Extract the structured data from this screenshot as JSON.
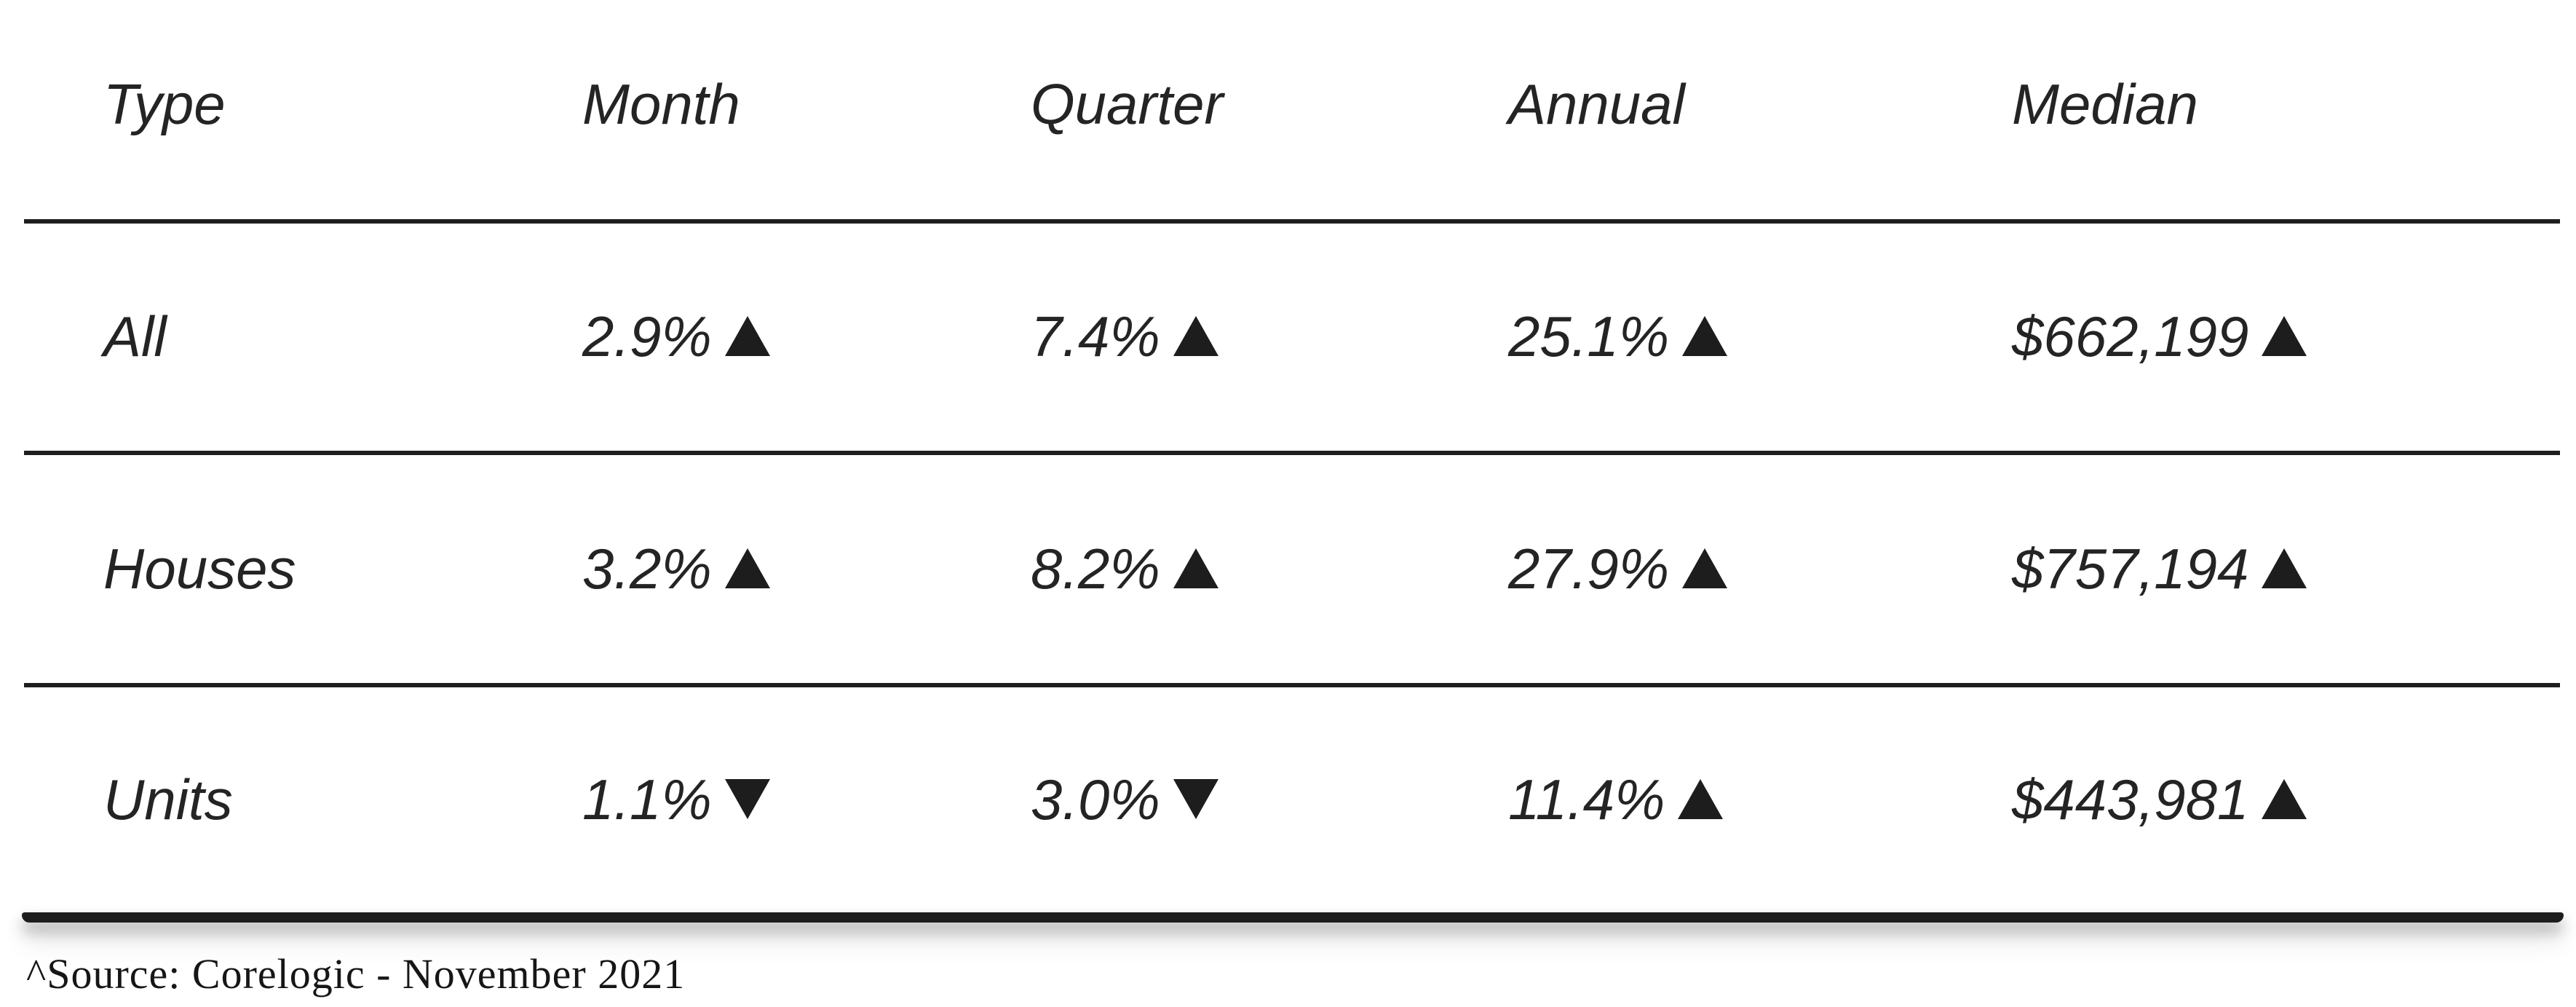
{
  "chart_data": {
    "type": "table",
    "columns": [
      "Type",
      "Month",
      "Quarter",
      "Annual",
      "Median"
    ],
    "rows": [
      [
        "All",
        "2.9% ▲",
        "7.4% ▲",
        "25.1% ▲",
        "$662,199 ▲"
      ],
      [
        "Houses",
        "3.2% ▲",
        "8.2% ▲",
        "27.9% ▲",
        "$757,194 ▲"
      ],
      [
        "Units",
        "1.1% ▼",
        "3.0% ▼",
        "11.4% ▲",
        "$443,981 ▲"
      ],
      [
        "^Source: Corelogic - November 2021",
        "",
        "",
        "",
        ""
      ]
    ],
    "title": "",
    "legend_position": "none",
    "grid": "horizontal-rules-only"
  },
  "rows": [
    {
      "type": "All",
      "month": {
        "value": "2.9%",
        "dir": "up",
        "icon": "up-triangle-icon"
      },
      "quarter": {
        "value": "7.4%",
        "dir": "up",
        "icon": "up-triangle-icon"
      },
      "annual": {
        "value": "25.1%",
        "dir": "up",
        "icon": "up-triangle-icon"
      },
      "median": {
        "value": "$662,199",
        "dir": "up",
        "icon": "up-triangle-icon"
      }
    },
    {
      "type": "Houses",
      "month": {
        "value": "3.2%",
        "dir": "up",
        "icon": "up-triangle-icon"
      },
      "quarter": {
        "value": "8.2%",
        "dir": "up",
        "icon": "up-triangle-icon"
      },
      "annual": {
        "value": "27.9%",
        "dir": "up",
        "icon": "up-triangle-icon"
      },
      "median": {
        "value": "$757,194",
        "dir": "up",
        "icon": "up-triangle-icon"
      }
    },
    {
      "type": "Units",
      "month": {
        "value": "1.1%",
        "dir": "down",
        "icon": "down-triangle-icon"
      },
      "quarter": {
        "value": "3.0%",
        "dir": "down",
        "icon": "down-triangle-icon"
      },
      "annual": {
        "value": "11.4%",
        "dir": "up",
        "icon": "up-triangle-icon"
      },
      "median": {
        "value": "$443,981",
        "dir": "up",
        "icon": "up-triangle-icon"
      }
    }
  ],
  "footnote": "^Source: Corelogic - November 2021",
  "colors": {
    "text": "#242424",
    "rule": "#1e1e1e",
    "bottom_bar": "#1d1d1d",
    "triangle": "#1d1d1d",
    "background": "#ffffff"
  }
}
